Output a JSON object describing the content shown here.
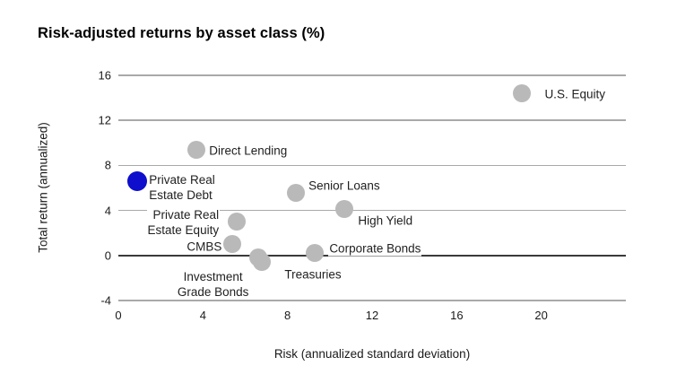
{
  "title": "Risk-adjusted returns by asset class (%)",
  "chart_data": {
    "type": "scatter",
    "title": "Risk-adjusted returns by asset class (%)",
    "xlabel": "Risk (annualized standard deviation)",
    "ylabel": "Total return (annualized)",
    "xlim": [
      0,
      24
    ],
    "ylim": [
      -4,
      16
    ],
    "x_ticks": [
      0,
      4,
      8,
      12,
      16,
      20
    ],
    "y_ticks": [
      16,
      12,
      8,
      4,
      0,
      -4
    ],
    "grid": "horizontal-only",
    "legend": "none",
    "colors": {
      "default_point": "#b9b9b9",
      "highlight_point": "#0e0ecc",
      "gridline": "#a9a9a9",
      "zero_line": "#3a3a3a",
      "background": "#ffffff",
      "text": "#1a1a1a"
    },
    "points": [
      {
        "id": "us_equity",
        "label": "U.S. Equity",
        "x": 19.1,
        "y": 14.4,
        "highlight": false
      },
      {
        "id": "direct_lending",
        "label": "Direct Lending",
        "x": 3.7,
        "y": 9.4,
        "highlight": false
      },
      {
        "id": "private_real_estate_debt",
        "label": "Private Real\nEstate Debt",
        "x": 0.9,
        "y": 6.6,
        "highlight": true
      },
      {
        "id": "senior_loans",
        "label": "Senior Loans",
        "x": 8.4,
        "y": 5.6,
        "highlight": false
      },
      {
        "id": "high_yield",
        "label": "High Yield",
        "x": 10.7,
        "y": 4.1,
        "highlight": false
      },
      {
        "id": "private_real_estate_equity",
        "label": "Private Real\nEstate Equity",
        "x": 5.6,
        "y": 3.0,
        "highlight": false
      },
      {
        "id": "cmbs",
        "label": "CMBS",
        "x": 5.4,
        "y": 1.0,
        "highlight": false
      },
      {
        "id": "investment_grade_bonds",
        "label": "Investment\nGrade Bonds",
        "x": 6.6,
        "y": -0.2,
        "highlight": false
      },
      {
        "id": "treasuries",
        "label": "Treasuries",
        "x": 6.8,
        "y": -0.6,
        "highlight": false
      },
      {
        "id": "corporate_bonds",
        "label": "Corporate Bonds",
        "x": 9.3,
        "y": 0.2,
        "highlight": false
      }
    ]
  }
}
